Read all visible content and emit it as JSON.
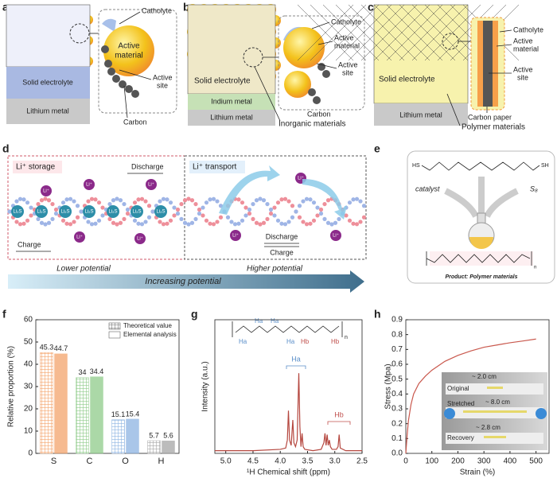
{
  "panel_labels": [
    "a",
    "b",
    "c",
    "d",
    "e",
    "f",
    "g",
    "h"
  ],
  "panel_a": {
    "catholyte": "Catholyte",
    "active_material": [
      "Active",
      "material"
    ],
    "active_site": [
      "Active",
      "site"
    ],
    "carbon": "Carbon",
    "solid_electrolyte": "Solid electrolyte",
    "lithium_metal": "Lithium metal"
  },
  "panel_b": {
    "catholyte": "Catholyte",
    "active_material": [
      "Active",
      "material"
    ],
    "active_site": [
      "Active",
      "site"
    ],
    "carbon": "Carbon",
    "solid_electrolyte": "Solid electrolyte",
    "indium_metal": "Indium metal",
    "lithium_metal": "Lithium metal",
    "inorganic_materials": "Inorganic materials"
  },
  "panel_c": {
    "catholyte": "Catholyte",
    "active_material": [
      "Active",
      "material"
    ],
    "active_site": [
      "Active",
      "site"
    ],
    "carbon_paper": "Carbon paper",
    "solid_electrolyte": "Solid electrolyte",
    "lithium_metal": "Lithium metal",
    "polymer_materials": "Polymer materials"
  },
  "panel_d": {
    "li_storage": "Li⁺ storage",
    "li_transport": "Li⁺ transport",
    "discharge": "Discharge",
    "charge": "Charge",
    "li_ion": "Li⁺",
    "li2s": "Li₂S",
    "lower_potential": "Lower potential",
    "increasing_potential": "Increasing potential",
    "higher_potential": "Higher potential"
  },
  "panel_e": {
    "hs": "HS",
    "sh": "SH",
    "catalyst": "catalyst",
    "s8": "S₈",
    "n": "n",
    "product": "Product: Polymer materials"
  },
  "chart_data": [
    {
      "type": "bar",
      "ylabel": "Relative proportion (%)",
      "categories": [
        "S",
        "C",
        "O",
        "H"
      ],
      "category_colors": [
        "#f4a46c",
        "#8fcb8a",
        "#8db4e2",
        "#a6a6a6"
      ],
      "series": [
        {
          "name": "Theoretical value",
          "fill_style": "hatched",
          "values": [
            45.3,
            34,
            15.1,
            5.7
          ]
        },
        {
          "name": "Elemental analysis",
          "fill_style": "solid",
          "values": [
            44.7,
            34.4,
            15.4,
            5.6
          ]
        }
      ],
      "ylim": [
        0,
        60
      ],
      "yticks": [
        0,
        10,
        20,
        30,
        40,
        50,
        60
      ],
      "legend": "upper right"
    },
    {
      "type": "line",
      "ylabel": "Intensity (a.u.)",
      "xlabel": "¹H Chemical shift (ppm)",
      "annotations": {
        "ha": "Ha",
        "hb": "Hb",
        "n": "n"
      },
      "x": [
        5.2,
        4.5,
        4.0,
        3.9,
        3.87,
        3.85,
        3.83,
        3.8,
        3.77,
        3.75,
        3.72,
        3.69,
        3.66,
        3.64,
        3.62,
        3.6,
        3.58,
        3.55,
        3.4,
        3.25,
        3.2,
        3.18,
        3.16,
        3.14,
        3.12,
        3.1,
        3.08,
        3.05,
        2.97,
        2.94,
        2.92,
        2.9,
        2.8,
        2.5
      ],
      "series": [
        {
          "color": "#b5473f",
          "values": [
            0.02,
            0.02,
            0.03,
            0.04,
            0.1,
            0.32,
            0.1,
            0.06,
            0.25,
            0.08,
            0.05,
            0.1,
            0.6,
            0.2,
            0.05,
            0.15,
            0.05,
            0.03,
            0.02,
            0.03,
            0.08,
            0.15,
            0.06,
            0.14,
            0.06,
            0.1,
            0.05,
            0.03,
            0.03,
            0.05,
            0.14,
            0.04,
            0.02,
            0.02
          ]
        }
      ],
      "xlim": [
        5.2,
        2.5
      ],
      "xticks": [
        {
          "value": 5,
          "label": "5.0"
        },
        4.5,
        {
          "value": 4,
          "label": "4.0"
        },
        3.5,
        {
          "value": 3,
          "label": "3.0"
        },
        2.5
      ],
      "ylim": [
        0,
        1
      ]
    },
    {
      "type": "line",
      "ylabel": "Stress (Mpa)",
      "xlabel": "Strain (%)",
      "inset": {
        "original": "Original",
        "len1": "~ 2.0 cm",
        "stretched": "Stretched",
        "len2": "~ 8.0 cm",
        "recovery": "Recovery",
        "len3": "~ 2.8 cm"
      },
      "x": [
        0,
        5,
        10,
        20,
        30,
        50,
        75,
        100,
        150,
        200,
        250,
        300,
        350,
        400,
        450,
        500
      ],
      "series": [
        {
          "color": "#c9584d",
          "values": [
            0,
            0.12,
            0.22,
            0.33,
            0.4,
            0.47,
            0.52,
            0.56,
            0.62,
            0.66,
            0.69,
            0.715,
            0.73,
            0.745,
            0.757,
            0.77
          ]
        }
      ],
      "xlim": [
        0,
        550
      ],
      "xticks": [
        0,
        100,
        200,
        300,
        400,
        500
      ],
      "ylim": [
        0,
        0.9
      ],
      "yticks": [
        {
          "value": 0,
          "label": "0.0"
        },
        0.1,
        0.2,
        0.3,
        0.4,
        0.5,
        0.6,
        0.7,
        0.8,
        0.9
      ]
    }
  ]
}
